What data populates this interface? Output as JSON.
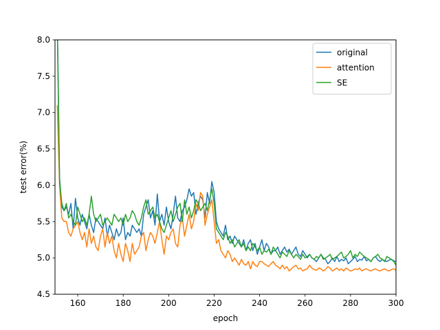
{
  "chart_data": {
    "type": "line",
    "title": "",
    "xlabel": "epoch",
    "ylabel": "test error(%)",
    "xlim": [
      150,
      300
    ],
    "ylim": [
      4.5,
      8.0
    ],
    "xticks": [
      160,
      180,
      200,
      220,
      240,
      260,
      280,
      300
    ],
    "xtick_labels": [
      "160",
      "180",
      "200",
      "220",
      "240",
      "260",
      "280",
      "300"
    ],
    "yticks": [
      4.5,
      5.0,
      5.5,
      6.0,
      6.5,
      7.0,
      7.5,
      8.0
    ],
    "ytick_labels": [
      "4.5",
      "5.0",
      "5.5",
      "6.0",
      "6.5",
      "7.0",
      "7.5",
      "8.0"
    ],
    "grid": false,
    "legend_position": "upper right",
    "x": [
      151,
      152,
      153,
      154,
      155,
      156,
      157,
      158,
      159,
      160,
      161,
      162,
      163,
      164,
      165,
      166,
      167,
      168,
      169,
      170,
      171,
      172,
      173,
      174,
      175,
      176,
      177,
      178,
      179,
      180,
      181,
      182,
      183,
      184,
      185,
      186,
      187,
      188,
      189,
      190,
      191,
      192,
      193,
      194,
      195,
      196,
      197,
      198,
      199,
      200,
      201,
      202,
      203,
      204,
      205,
      206,
      207,
      208,
      209,
      210,
      211,
      212,
      213,
      214,
      215,
      216,
      217,
      218,
      219,
      220,
      221,
      222,
      223,
      224,
      225,
      226,
      227,
      228,
      229,
      230,
      231,
      232,
      233,
      234,
      235,
      236,
      237,
      238,
      239,
      240,
      241,
      242,
      243,
      244,
      245,
      246,
      247,
      248,
      249,
      250,
      251,
      252,
      253,
      254,
      255,
      256,
      257,
      258,
      259,
      260,
      261,
      262,
      263,
      264,
      265,
      266,
      267,
      268,
      269,
      270,
      271,
      272,
      273,
      274,
      275,
      276,
      277,
      278,
      279,
      280,
      281,
      282,
      283,
      284,
      285,
      286,
      287,
      288,
      289,
      290,
      291,
      292,
      293,
      294,
      295,
      296,
      297,
      298,
      299,
      300
    ],
    "series": [
      {
        "name": "original",
        "color": "#1f77b4",
        "values": [
          8.35,
          6.1,
          5.7,
          5.65,
          5.7,
          5.6,
          5.75,
          5.4,
          5.82,
          5.55,
          5.45,
          5.6,
          5.5,
          5.4,
          5.6,
          5.45,
          5.35,
          5.55,
          5.5,
          5.45,
          5.4,
          5.55,
          5.3,
          5.45,
          5.35,
          5.25,
          5.4,
          5.3,
          5.35,
          5.55,
          5.25,
          5.35,
          5.3,
          5.45,
          5.4,
          5.35,
          5.4,
          5.3,
          5.6,
          5.7,
          5.8,
          5.55,
          5.65,
          5.45,
          5.88,
          5.5,
          5.6,
          5.45,
          5.7,
          5.5,
          5.4,
          5.6,
          5.85,
          5.55,
          5.5,
          5.65,
          5.7,
          5.8,
          5.95,
          5.85,
          5.9,
          5.6,
          5.75,
          5.85,
          5.8,
          5.55,
          5.9,
          5.75,
          6.05,
          5.9,
          5.5,
          5.4,
          5.35,
          5.3,
          5.45,
          5.25,
          5.3,
          5.2,
          5.3,
          5.25,
          5.2,
          5.15,
          5.25,
          5.1,
          5.2,
          5.25,
          5.1,
          5.2,
          5.05,
          5.15,
          5.25,
          5.1,
          5.2,
          5.15,
          5.05,
          5.1,
          5.1,
          5.15,
          5.05,
          5.1,
          5.15,
          5.08,
          5.12,
          5.05,
          5.1,
          5.15,
          5.05,
          5.02,
          5.1,
          5.05,
          5.0,
          5.05,
          5.0,
          4.98,
          4.95,
          5.0,
          5.05,
          5.0,
          4.98,
          4.92,
          4.95,
          5.0,
          4.95,
          5.02,
          4.95,
          4.98,
          4.96,
          5.0,
          4.92,
          4.95,
          4.98,
          5.02,
          4.95,
          4.98,
          4.97,
          5.02,
          4.96,
          4.98,
          4.95,
          5.0,
          5.02,
          4.97,
          4.95,
          4.98,
          4.96,
          4.95,
          4.97,
          4.98,
          4.96,
          4.95
        ]
      },
      {
        "name": "attention",
        "color": "#ff7f0e",
        "values": [
          7.1,
          6.0,
          5.55,
          5.5,
          5.5,
          5.35,
          5.3,
          5.4,
          5.45,
          5.5,
          5.35,
          5.25,
          5.35,
          5.15,
          5.4,
          5.2,
          5.3,
          5.15,
          5.1,
          5.3,
          5.4,
          5.15,
          5.35,
          5.2,
          5.3,
          5.1,
          5.0,
          5.2,
          5.05,
          4.95,
          5.2,
          5.1,
          4.95,
          5.2,
          5.05,
          5.1,
          5.15,
          5.3,
          5.35,
          5.1,
          5.25,
          5.35,
          5.3,
          5.2,
          5.35,
          5.5,
          5.25,
          5.05,
          5.3,
          5.25,
          5.35,
          5.4,
          5.2,
          5.15,
          5.45,
          5.55,
          5.3,
          5.45,
          5.6,
          5.4,
          5.5,
          5.75,
          5.65,
          5.9,
          5.85,
          5.45,
          5.6,
          5.7,
          5.8,
          5.5,
          5.2,
          5.25,
          5.1,
          5.05,
          5.0,
          5.1,
          5.05,
          4.95,
          5.0,
          4.95,
          4.9,
          4.98,
          4.92,
          4.9,
          4.95,
          4.85,
          4.95,
          4.9,
          4.88,
          4.95,
          4.95,
          4.92,
          4.9,
          4.88,
          4.92,
          4.95,
          4.9,
          4.88,
          4.85,
          4.9,
          4.85,
          4.88,
          4.82,
          4.85,
          4.88,
          4.9,
          4.85,
          4.86,
          4.82,
          4.84,
          4.85,
          4.9,
          4.86,
          4.84,
          4.83,
          4.86,
          4.85,
          4.82,
          4.84,
          4.88,
          4.86,
          4.82,
          4.84,
          4.86,
          4.83,
          4.85,
          4.82,
          4.86,
          4.84,
          4.82,
          4.83,
          4.85,
          4.84,
          4.86,
          4.82,
          4.84,
          4.85,
          4.83,
          4.82,
          4.84,
          4.85,
          4.83,
          4.82,
          4.84,
          4.85,
          4.83,
          4.82,
          4.84,
          4.85,
          4.83
        ]
      },
      {
        "name": "SE",
        "color": "#2ca02c",
        "values": [
          8.2,
          6.05,
          5.75,
          5.65,
          5.75,
          5.55,
          5.6,
          5.5,
          5.45,
          5.7,
          5.6,
          5.5,
          5.55,
          5.45,
          5.6,
          5.85,
          5.6,
          5.5,
          5.55,
          5.6,
          5.45,
          5.5,
          5.55,
          5.5,
          5.45,
          5.6,
          5.55,
          5.5,
          5.55,
          5.45,
          5.6,
          5.5,
          5.55,
          5.65,
          5.6,
          5.5,
          5.45,
          5.55,
          5.7,
          5.8,
          5.6,
          5.65,
          5.7,
          5.55,
          5.6,
          5.5,
          5.4,
          5.35,
          5.45,
          5.55,
          5.65,
          5.5,
          5.6,
          5.7,
          5.75,
          5.5,
          5.8,
          5.6,
          5.7,
          5.55,
          5.65,
          5.8,
          5.75,
          5.65,
          5.7,
          5.75,
          5.65,
          5.8,
          5.95,
          5.75,
          5.4,
          5.35,
          5.3,
          5.25,
          5.35,
          5.3,
          5.2,
          5.25,
          5.15,
          5.2,
          5.25,
          5.15,
          5.2,
          5.1,
          5.15,
          5.1,
          5.2,
          5.15,
          5.1,
          5.15,
          5.05,
          5.1,
          5.08,
          5.12,
          5.05,
          5.15,
          5.1,
          5.05,
          5.0,
          5.08,
          5.05,
          5.02,
          5.1,
          5.05,
          5.0,
          5.05,
          5.02,
          4.98,
          5.05,
          5.0,
          5.02,
          5.05,
          5.0,
          4.98,
          5.02,
          5.0,
          5.05,
          4.98,
          5.0,
          5.02,
          5.05,
          4.98,
          5.0,
          5.02,
          5.05,
          5.08,
          5.0,
          5.02,
          5.05,
          5.1,
          5.0,
          5.05,
          5.02,
          5.08,
          5.05,
          5.02,
          5.0,
          4.98,
          4.95,
          5.0,
          5.02,
          5.05,
          5.0,
          4.98,
          4.95,
          5.02,
          5.0,
          4.98,
          4.95,
          4.9
        ]
      }
    ]
  }
}
